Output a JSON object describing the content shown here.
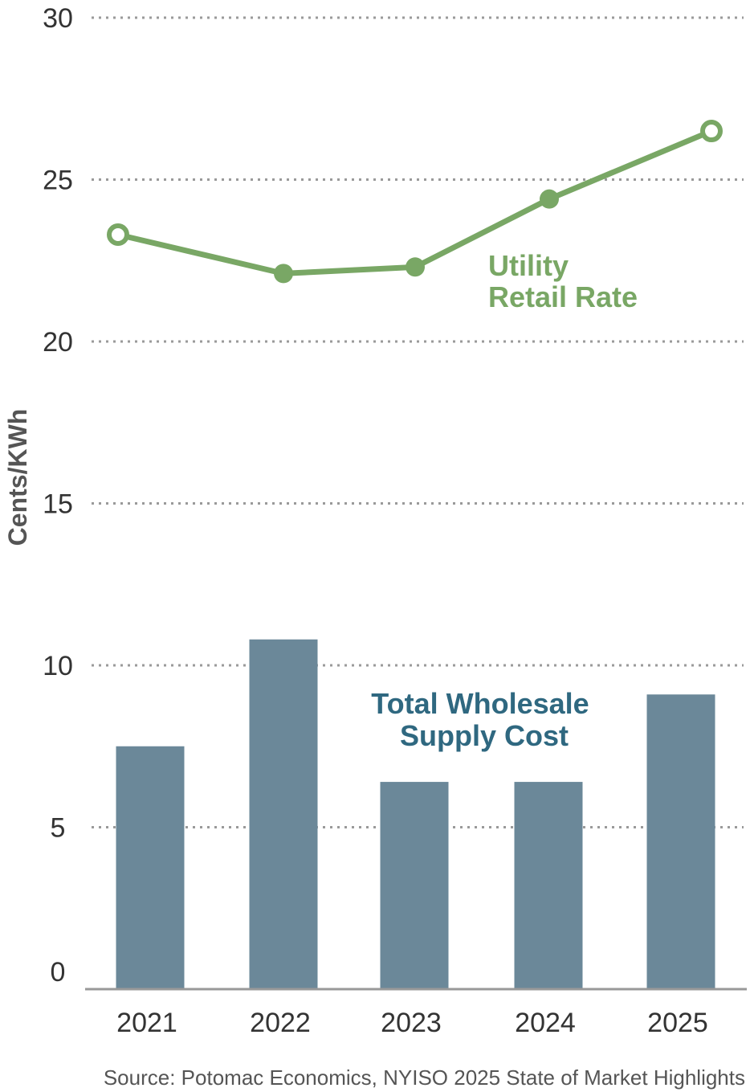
{
  "chart_data": {
    "type": "bar",
    "categories": [
      "2021",
      "2022",
      "2023",
      "2024",
      "2025"
    ],
    "ylabel": "Cents/KWh",
    "ylim": [
      0,
      30
    ],
    "yticks": [
      0,
      5,
      10,
      15,
      20,
      25,
      30
    ],
    "grid": true,
    "series": [
      {
        "name": "Total Wholesale Supply Cost",
        "type": "bar",
        "values": [
          7.5,
          10.8,
          6.4,
          6.4,
          9.1
        ],
        "color": "#6b8899"
      },
      {
        "name": "Utility Retail Rate",
        "type": "line",
        "values": [
          23.3,
          22.1,
          22.3,
          24.4,
          26.5
        ],
        "color": "#79a765"
      }
    ],
    "source": "Source: Potomac Economics, NYISO 2025 State of Market Highlights"
  },
  "labels": {
    "line_label_lines": [
      "Utility",
      "Retail Rate"
    ],
    "bar_label_lines": [
      "Total Wholesale",
      "Supply Cost"
    ]
  }
}
